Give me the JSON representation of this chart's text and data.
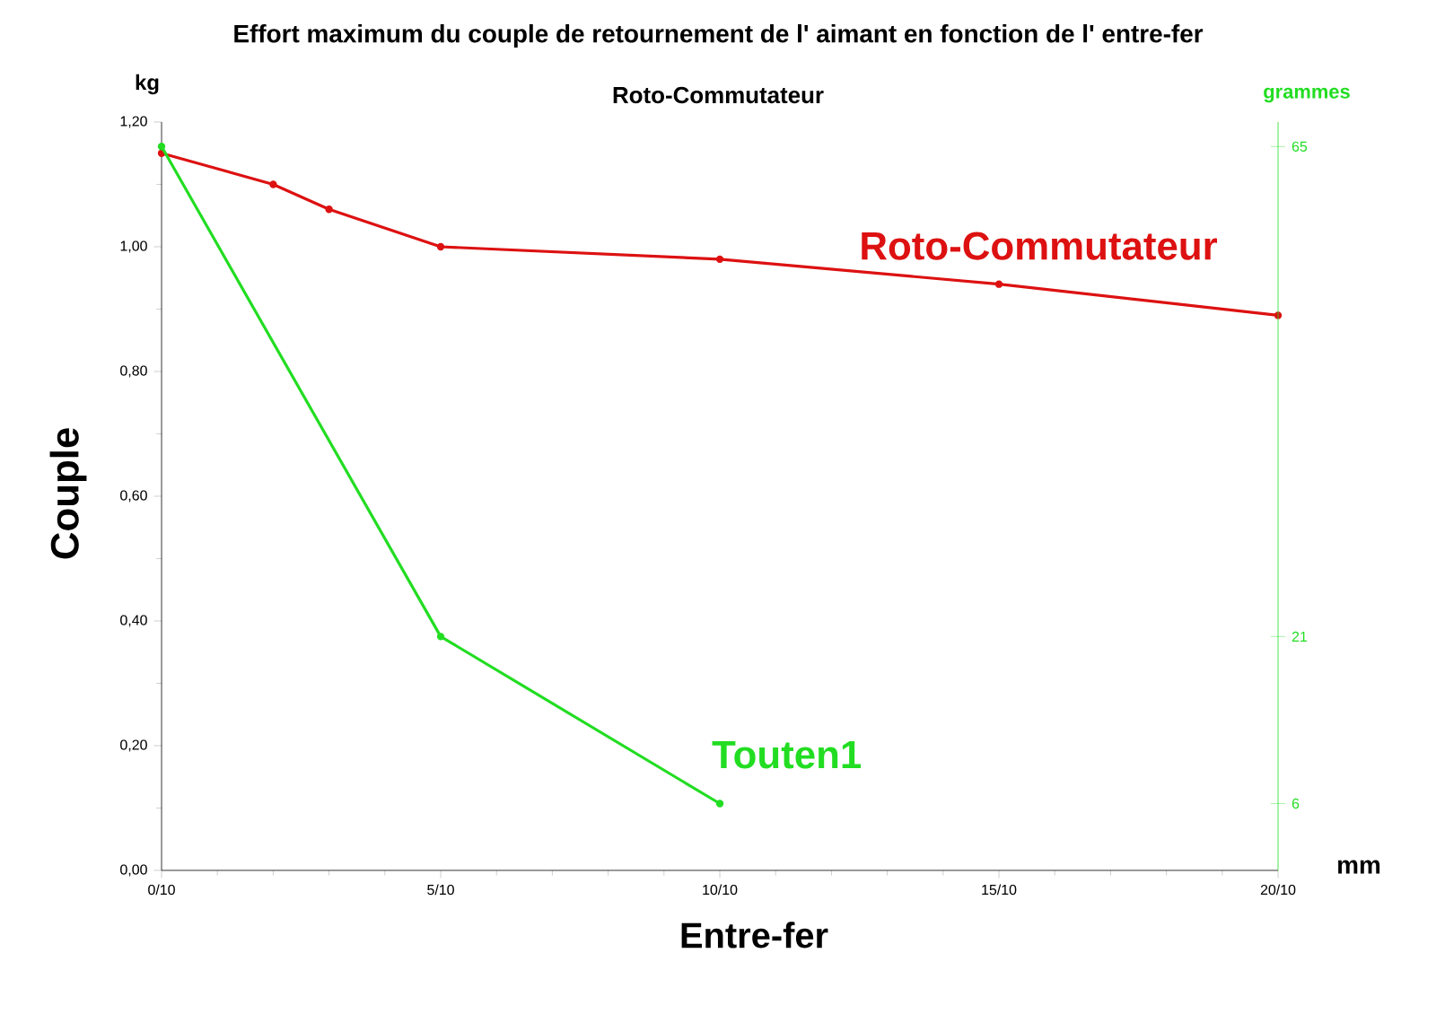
{
  "chart_data": {
    "type": "line",
    "title": "Effort maximum du couple de retournement de l' aimant en fonction de l' entre-fer",
    "subtitle": "Roto-Commutateur",
    "xlabel": "Entre-fer",
    "ylabel": "Couple",
    "y2label": "grammes",
    "annotations": [
      "kg",
      "mm"
    ],
    "xlim": [
      0,
      2
    ],
    "xticks": [
      {
        "value": 0,
        "label": "0/10"
      },
      {
        "value": 0.5,
        "label": "5/10"
      },
      {
        "value": 1.0,
        "label": "10/10"
      },
      {
        "value": 1.5,
        "label": "15/10"
      },
      {
        "value": 2.0,
        "label": "20/10"
      }
    ],
    "ylim": [
      0,
      1.2
    ],
    "yticks": [
      {
        "value": 0,
        "label": "0,00"
      },
      {
        "value": 0.2,
        "label": "0,20"
      },
      {
        "value": 0.4,
        "label": "0,40"
      },
      {
        "value": 0.6,
        "label": "0,60"
      },
      {
        "value": 0.8,
        "label": "0,80"
      },
      {
        "value": 1.0,
        "label": "1,00"
      },
      {
        "value": 1.2,
        "label": "1,20"
      }
    ],
    "y2lim": [
      0,
      67.2
    ],
    "y2ticks": [
      6,
      21,
      65
    ],
    "marker": "circle",
    "line_style": "solid",
    "series": [
      {
        "name": "Roto-Commutateur",
        "color": "#dd1111",
        "x": [
          0,
          0.2,
          0.3,
          0.5,
          1.0,
          1.5,
          2.0
        ],
        "values": [
          1.15,
          1.1,
          1.06,
          1.0,
          0.98,
          0.94,
          0.89
        ]
      },
      {
        "name": "Touten1",
        "color": "#22dd22",
        "axis": "y2",
        "x": [
          0,
          0.5,
          1.0
        ],
        "values": [
          65,
          21,
          6
        ]
      }
    ]
  }
}
